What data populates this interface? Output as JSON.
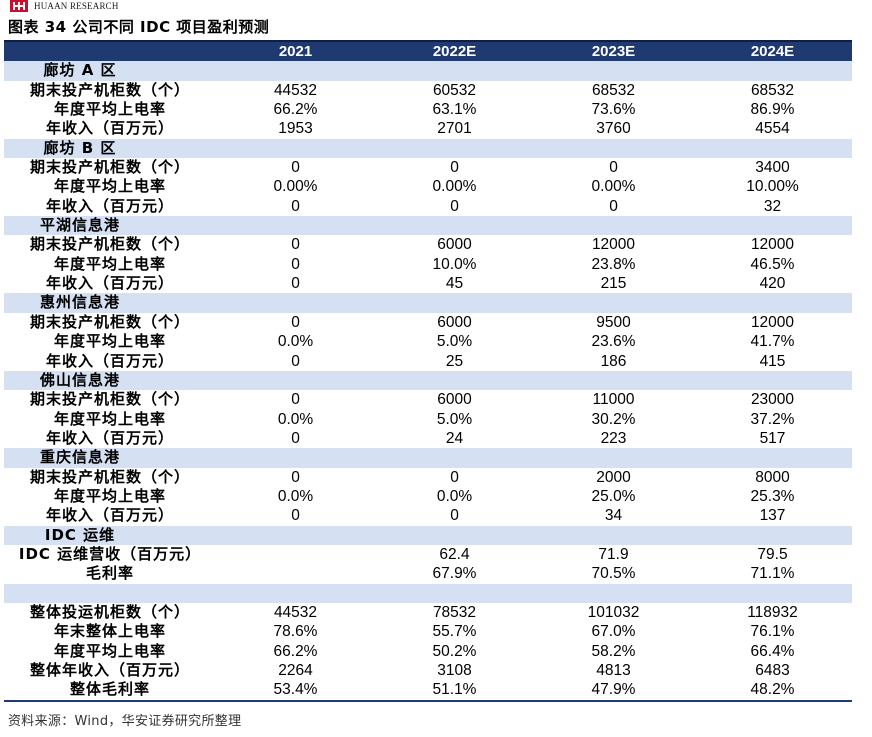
{
  "header": {
    "brand_en": "HUAAN RESEARCH",
    "figure_title": "图表 34  公司不同 IDC 项目盈利预测"
  },
  "table": {
    "columns": [
      "",
      "2021",
      "2022E",
      "2023E",
      "2024E"
    ],
    "sections": [
      {
        "title": "廊坊 A 区",
        "rows": [
          {
            "label": "期末投产机柜数（个）",
            "values": [
              "44532",
              "60532",
              "68532",
              "68532"
            ]
          },
          {
            "label": "年度平均上电率",
            "values": [
              "66.2%",
              "63.1%",
              "73.6%",
              "86.9%"
            ]
          },
          {
            "label": "年收入（百万元）",
            "values": [
              "1953",
              "2701",
              "3760",
              "4554"
            ]
          }
        ]
      },
      {
        "title": "廊坊 B 区",
        "rows": [
          {
            "label": "期末投产机柜数（个）",
            "values": [
              "0",
              "0",
              "0",
              "3400"
            ]
          },
          {
            "label": "年度平均上电率",
            "values": [
              "0.00%",
              "0.00%",
              "0.00%",
              "10.00%"
            ]
          },
          {
            "label": "年收入（百万元）",
            "values": [
              "0",
              "0",
              "0",
              "32"
            ]
          }
        ]
      },
      {
        "title": "平湖信息港",
        "rows": [
          {
            "label": "期末投产机柜数（个）",
            "values": [
              "0",
              "6000",
              "12000",
              "12000"
            ]
          },
          {
            "label": "年度平均上电率",
            "values": [
              "0",
              "10.0%",
              "23.8%",
              "46.5%"
            ]
          },
          {
            "label": "年收入（百万元）",
            "values": [
              "0",
              "45",
              "215",
              "420"
            ]
          }
        ]
      },
      {
        "title": "惠州信息港",
        "rows": [
          {
            "label": "期末投产机柜数（个）",
            "values": [
              "0",
              "6000",
              "9500",
              "12000"
            ]
          },
          {
            "label": "年度平均上电率",
            "values": [
              "0.0%",
              "5.0%",
              "23.6%",
              "41.7%"
            ]
          },
          {
            "label": "年收入（百万元）",
            "values": [
              "0",
              "25",
              "186",
              "415"
            ]
          }
        ]
      },
      {
        "title": "佛山信息港",
        "rows": [
          {
            "label": "期末投产机柜数（个）",
            "values": [
              "0",
              "6000",
              "11000",
              "23000"
            ]
          },
          {
            "label": "年度平均上电率",
            "values": [
              "0.0%",
              "5.0%",
              "30.2%",
              "37.2%"
            ]
          },
          {
            "label": "年收入（百万元）",
            "values": [
              "0",
              "24",
              "223",
              "517"
            ]
          }
        ]
      },
      {
        "title": "重庆信息港",
        "rows": [
          {
            "label": "期末投产机柜数（个）",
            "values": [
              "0",
              "0",
              "2000",
              "8000"
            ]
          },
          {
            "label": "年度平均上电率",
            "values": [
              "0.0%",
              "0.0%",
              "25.0%",
              "25.3%"
            ]
          },
          {
            "label": "年收入（百万元）",
            "values": [
              "0",
              "0",
              "34",
              "137"
            ]
          }
        ]
      },
      {
        "title": "IDC 运维",
        "rows": [
          {
            "label": "IDC 运维营收（百万元）",
            "values": [
              "",
              "62.4",
              "71.9",
              "79.5"
            ]
          },
          {
            "label": "毛利率",
            "values": [
              "",
              "67.9%",
              "70.5%",
              "71.1%"
            ]
          }
        ]
      },
      {
        "title": "",
        "rows": [
          {
            "label": "整体投运机柜数（个）",
            "values": [
              "44532",
              "78532",
              "101032",
              "118932"
            ]
          },
          {
            "label": "年末整体上电率",
            "values": [
              "78.6%",
              "55.7%",
              "67.0%",
              "76.1%"
            ]
          },
          {
            "label": "年度平均上电率",
            "values": [
              "66.2%",
              "50.2%",
              "58.2%",
              "66.4%"
            ]
          },
          {
            "label": "整体年收入（百万元）",
            "values": [
              "2264",
              "3108",
              "4813",
              "6483"
            ]
          },
          {
            "label": "整体毛利率",
            "values": [
              "53.4%",
              "51.1%",
              "47.9%",
              "48.2%"
            ]
          }
        ]
      }
    ]
  },
  "source": "资料来源：Wind，华安证券研究所整理",
  "colors": {
    "header_bg": "#1f3a70",
    "section_bg": "#d5e0f3",
    "logo_red": "#c8102e"
  }
}
